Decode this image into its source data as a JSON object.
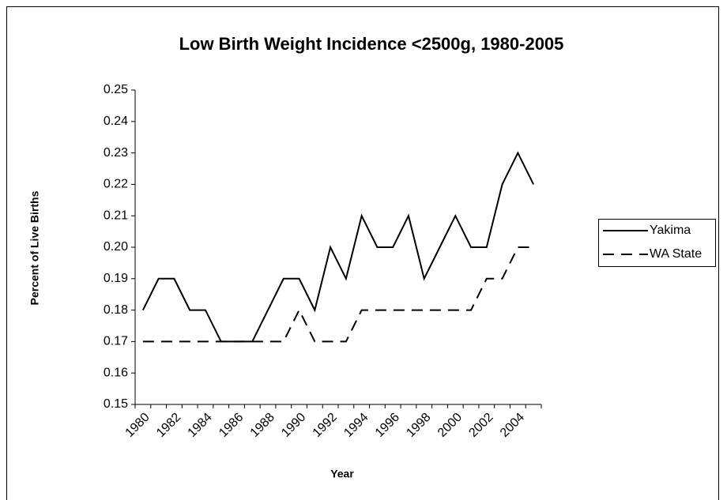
{
  "chart_data": {
    "type": "line",
    "title": "Low Birth Weight Incidence <2500g, 1980-2005",
    "x_label": "Year",
    "y_label": "Percent of Live Births",
    "categories": [
      "1980",
      null,
      "1982",
      null,
      "1984",
      null,
      "1986",
      null,
      "1988",
      null,
      "1990",
      null,
      "1992",
      null,
      "1994",
      null,
      "1996",
      null,
      "1998",
      null,
      "2000",
      null,
      "2002",
      null,
      "2004",
      null
    ],
    "series": [
      {
        "name": "Yakima",
        "color": "#000000",
        "line_style": "solid",
        "values": [
          0.18,
          0.19,
          0.19,
          0.18,
          0.18,
          0.17,
          0.17,
          0.17,
          0.18,
          0.19,
          0.19,
          0.18,
          0.2,
          0.19,
          0.21,
          0.2,
          0.2,
          0.21,
          0.19,
          0.2,
          0.21,
          0.2,
          0.2,
          0.22,
          0.23,
          0.22
        ]
      },
      {
        "name": "WA State",
        "color": "#000000",
        "line_style": "dashed",
        "values": [
          0.17,
          0.17,
          0.17,
          0.17,
          0.17,
          0.17,
          0.17,
          0.17,
          0.17,
          0.17,
          0.18,
          0.17,
          0.17,
          0.17,
          0.18,
          0.18,
          0.18,
          0.18,
          0.18,
          0.18,
          0.18,
          0.18,
          0.19,
          0.19,
          0.2,
          0.2
        ]
      }
    ],
    "ylim": [
      0.15,
      0.25
    ],
    "yticks": [
      0.15,
      0.16,
      0.17,
      0.18,
      0.19,
      {
        "value": 0.2,
        "label": "0.20"
      },
      0.21,
      0.22,
      0.23,
      0.24,
      0.25
    ],
    "grid": false,
    "legend": "right"
  }
}
